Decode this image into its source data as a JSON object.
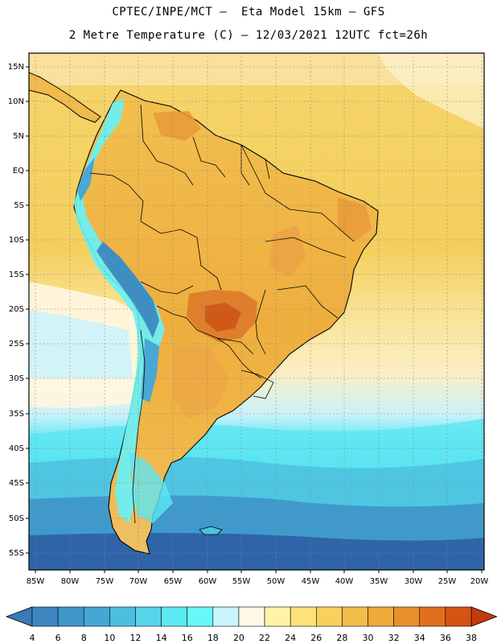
{
  "title_line1": "CPTEC/INPE/MCT –  Eta Model 15km – GFS",
  "title_line2": "2 Metre Temperature (C) – 12/03/2021 12UTC fct=26h",
  "lat_labels": [
    "15N",
    "10N",
    "5N",
    "EQ",
    "5S",
    "10S",
    "15S",
    "20S",
    "25S",
    "30S",
    "35S",
    "40S",
    "45S",
    "50S",
    "55S"
  ],
  "lon_labels": [
    "85W",
    "80W",
    "75W",
    "70W",
    "65W",
    "60W",
    "55W",
    "50W",
    "45W",
    "40W",
    "35W",
    "30W",
    "25W",
    "20W"
  ],
  "colorbar": {
    "labels": [
      "4",
      "6",
      "8",
      "10",
      "12",
      "14",
      "16",
      "18",
      "20",
      "22",
      "24",
      "26",
      "28",
      "30",
      "32",
      "34",
      "36",
      "38"
    ],
    "colors": [
      "#3a7ab8",
      "#3c86c0",
      "#3f96c8",
      "#44a8d4",
      "#4bbfe0",
      "#55d4ea",
      "#5de9f2",
      "#66f8fb",
      "#c8f4fb",
      "#fff8e8",
      "#fff3a6",
      "#fde27a",
      "#f7d05e",
      "#f2be4a",
      "#eeaa3a",
      "#e98f2a",
      "#e0701e",
      "#d45414",
      "#c33a0c"
    ]
  },
  "regions": [
    "Colombia",
    "Venezuela",
    "Guyana",
    "Suriname",
    "French Guiana",
    "Ecuador",
    "Peru",
    "Brazil",
    "Bolivia",
    "Paraguay",
    "Chile",
    "Argentina",
    "Uruguay",
    "Falkland Islands"
  ]
}
